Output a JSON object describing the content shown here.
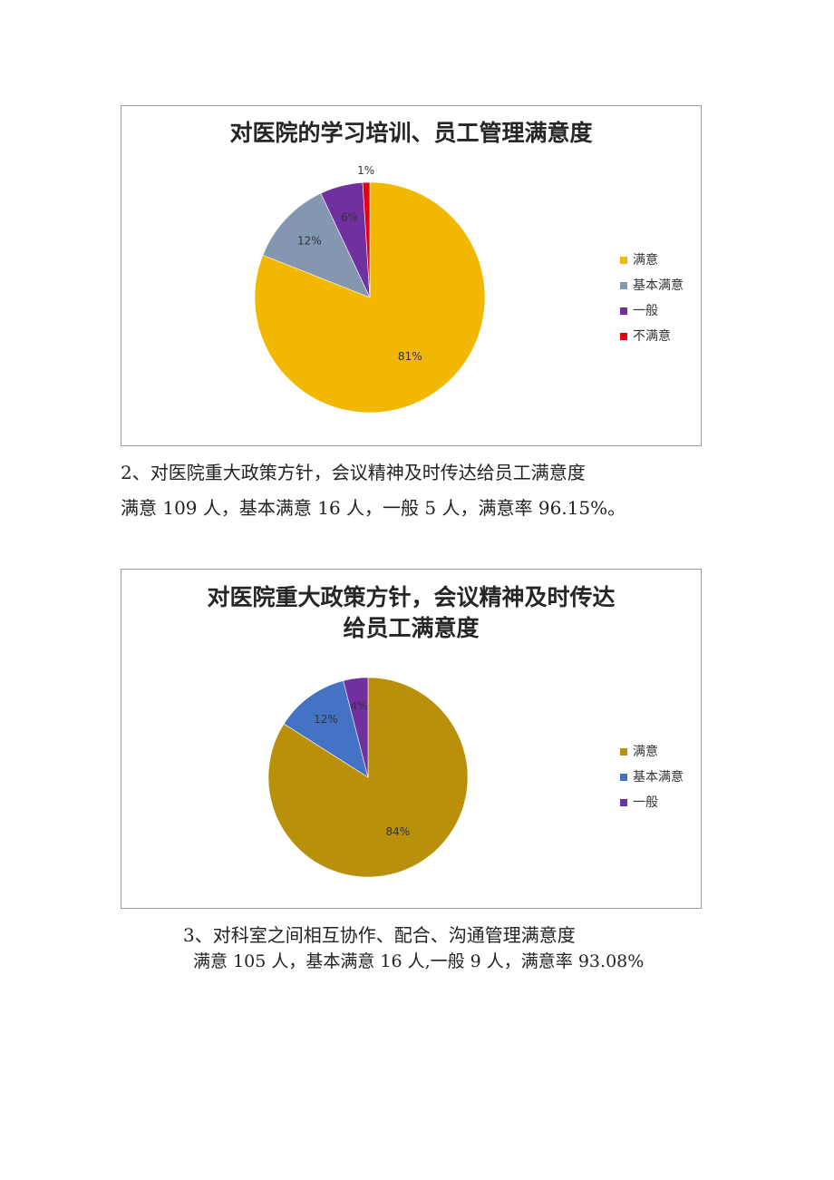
{
  "sections": [
    {
      "chart_data": {
        "type": "pie",
        "title": [
          "对医院的学习培训、员工管理满意度"
        ],
        "categories": [
          "满意",
          "基本满意",
          "一般",
          "不满意"
        ],
        "values": [
          81,
          12,
          6,
          1
        ],
        "labels": [
          "81%",
          "12%",
          "6%",
          "1%"
        ],
        "colors": [
          "#f2b800",
          "#8497b0",
          "#7030a0",
          "#e60012"
        ],
        "legend_position": "right"
      }
    },
    {
      "heading": "2、对医院重大政策方针，会议精神及时传达给员工满意度",
      "summary": "满意 109 人，基本满意 16 人，一般 5 人，满意率 96.15%。",
      "chart_data": {
        "type": "pie",
        "title": [
          "对医院重大政策方针，会议精神及时传达",
          "给员工满意度"
        ],
        "categories": [
          "满意",
          "基本满意",
          "一般"
        ],
        "values": [
          84,
          12,
          4
        ],
        "labels": [
          "84%",
          "12%",
          "4%"
        ],
        "colors": [
          "#b8900a",
          "#4472c4",
          "#7030a0"
        ],
        "legend_position": "right"
      }
    },
    {
      "heading": "3、对科室之间相互协作、配合、沟通管理满意度",
      "summary": "满意 105 人，基本满意 16 人,一般 9 人，满意率 93.08%"
    }
  ]
}
